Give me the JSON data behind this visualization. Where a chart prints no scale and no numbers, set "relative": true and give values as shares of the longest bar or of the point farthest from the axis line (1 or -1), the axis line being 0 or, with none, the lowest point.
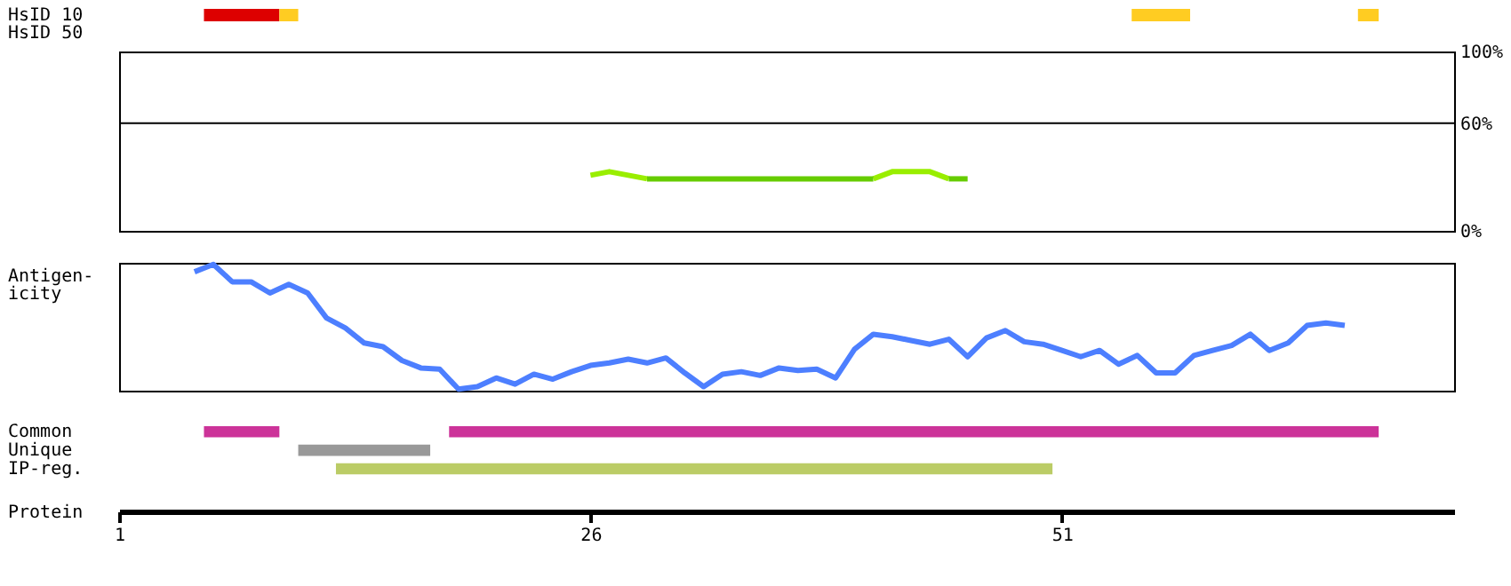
{
  "chart_data": [
    {
      "type": "bar",
      "orientation": "horizontal",
      "categories": [
        "HsID 10",
        "HsID 50"
      ],
      "xlim": [
        1,
        71.8
      ],
      "tick_labels": "y",
      "series": [
        {
          "color": "#dd0000",
          "values": [
            4,
            null
          ],
          "base": [
            5.5,
            null
          ]
        },
        {
          "color": "#ffcc22",
          "values": [
            1,
            null
          ],
          "base": [
            9.5,
            null
          ]
        },
        {
          "color": "#ffcc22",
          "values": [
            3.1,
            null
          ],
          "base": [
            54.7,
            null
          ]
        },
        {
          "color": "#ffcc22",
          "values": [
            1.1,
            null
          ],
          "base": [
            66.7,
            null
          ]
        }
      ]
    },
    {
      "type": "line",
      "xlim": [
        1,
        71.8
      ],
      "ylim": [
        0,
        100
      ],
      "yticks": [
        {
          "value": 0,
          "label": "0%"
        },
        {
          "value": 60,
          "label": "60%"
        },
        {
          "value": 100,
          "label": "100%"
        }
      ],
      "tick_labels": "y",
      "ref_lines": [
        {
          "axis": "y",
          "value": 60,
          "color": "#000000"
        }
      ],
      "series": [
        {
          "color": "#99ee00",
          "x": [
            26,
            27,
            29
          ],
          "values": [
            31,
            33,
            29
          ]
        },
        {
          "color": "#99ee00",
          "x": [
            41,
            42,
            44,
            45
          ],
          "values": [
            29,
            33,
            33,
            29
          ]
        },
        {
          "color": "#66cc00",
          "x": [
            29,
            41
          ],
          "values": [
            29,
            29
          ]
        },
        {
          "color": "#66cc00",
          "x": [
            45,
            46
          ],
          "values": [
            29,
            29
          ]
        }
      ]
    },
    {
      "type": "line",
      "relative": true,
      "xlim": [
        1,
        71.8
      ],
      "ylabel": "Antigen-\nicity",
      "tick_labels": false,
      "series": [
        {
          "color": "#4d7fff",
          "x": [
            5,
            6,
            7,
            8,
            9,
            10,
            11,
            12,
            13,
            14,
            15,
            16,
            17,
            18,
            19,
            20,
            21,
            22,
            23,
            24,
            25,
            26,
            27,
            28,
            29,
            30,
            31,
            32,
            33,
            34,
            35,
            36,
            37,
            38,
            39,
            40,
            41,
            42,
            43,
            44,
            45,
            46,
            47,
            48,
            49,
            50,
            51,
            52,
            53,
            54,
            55,
            56,
            57,
            58,
            59,
            60,
            61,
            62,
            63,
            64,
            65,
            66
          ],
          "values": [
            0.94,
            1,
            0.86,
            0.86,
            0.77,
            0.84,
            0.77,
            0.57,
            0.49,
            0.37,
            0.34,
            0.23,
            0.17,
            0.16,
            0,
            0.02,
            0.09,
            0.04,
            0.12,
            0.08,
            0.14,
            0.19,
            0.21,
            0.24,
            0.21,
            0.25,
            0.13,
            0.02,
            0.12,
            0.14,
            0.11,
            0.17,
            0.15,
            0.16,
            0.09,
            0.32,
            0.44,
            0.42,
            0.39,
            0.36,
            0.4,
            0.26,
            0.41,
            0.47,
            0.38,
            0.36,
            0.31,
            0.26,
            0.31,
            0.2,
            0.27,
            0.13,
            0.13,
            0.27,
            0.31,
            0.35,
            0.44,
            0.31,
            0.37,
            0.51,
            0.53,
            0.51
          ]
        }
      ]
    },
    {
      "type": "bar",
      "orientation": "horizontal",
      "categories": [
        "Common",
        "Unique",
        "IP-reg."
      ],
      "xlim": [
        1,
        71.8
      ],
      "xticks": [
        1,
        26,
        51
      ],
      "xlabel": "Protein",
      "series": [
        {
          "colors": [
            "#cc3399",
            "#999999",
            "#bbcc66"
          ],
          "values": [
            4,
            7,
            38
          ],
          "base": [
            5.5,
            10.5,
            12.5
          ]
        },
        {
          "color": "#cc3399",
          "values": [
            49.3,
            null,
            null
          ],
          "base": [
            18.5,
            null,
            null
          ]
        }
      ]
    }
  ]
}
